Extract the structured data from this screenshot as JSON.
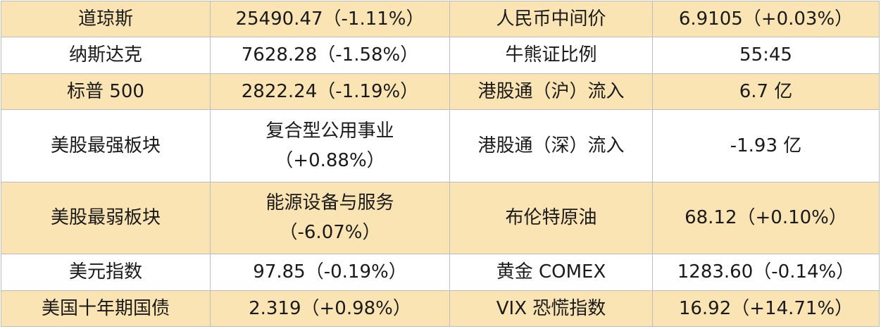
{
  "colors": {
    "odd_row_background": "#fbe4b3",
    "even_row_background": "#ffffff",
    "border": "#bdbdbd",
    "text": "#1a1a1a"
  },
  "rows": [
    {
      "label_left": "道琼斯",
      "value_left": "25490.47（-1.11%）",
      "label_right": "人民币中间价",
      "value_right": "6.9105（+0.03%）"
    },
    {
      "label_left": "纳斯达克",
      "value_left": "7628.28（-1.58%）",
      "label_right": "牛熊证比例",
      "value_right": "55:45"
    },
    {
      "label_left": "标普 500",
      "value_left": "2822.24（-1.19%）",
      "label_right": "港股通（沪）流入",
      "value_right": "6.7 亿"
    },
    {
      "label_left": "美股最强板块",
      "value_left_line1": "复合型公用事业",
      "value_left_line2": "（+0.88%）",
      "label_right": "港股通（深）流入",
      "value_right": "-1.93 亿"
    },
    {
      "label_left": "美股最弱板块",
      "value_left_line1": "能源设备与服务",
      "value_left_line2": "（-6.07%）",
      "label_right": "布伦特原油",
      "value_right": "68.12（+0.10%）"
    },
    {
      "label_left": "美元指数",
      "value_left": "97.85（-0.19%）",
      "label_right": "黄金 COMEX",
      "value_right": "1283.60（-0.14%）"
    },
    {
      "label_left": "美国十年期国债",
      "value_left": "2.319（+0.98%）",
      "label_right": "VIX 恐慌指数",
      "value_right": "16.92（+14.71%）"
    }
  ]
}
